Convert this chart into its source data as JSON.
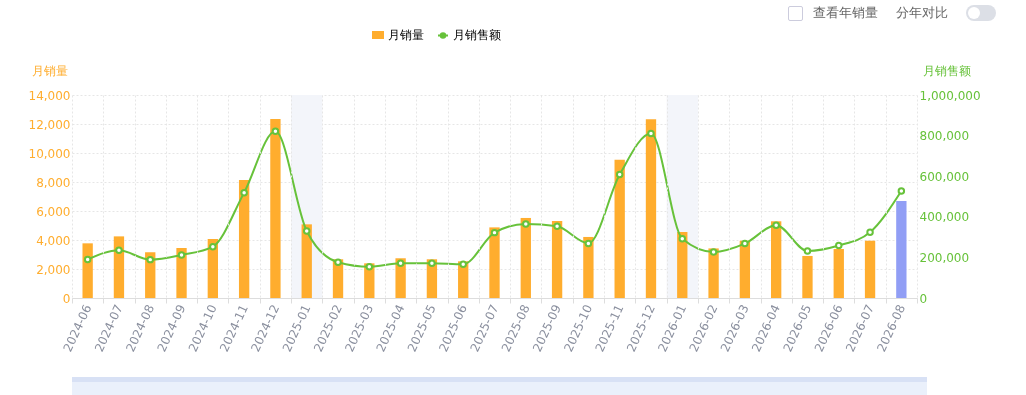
{
  "chart_data": {
    "type": "bar",
    "ylabel": "月销量",
    "y2label": "月销售额",
    "categories": [
      "2024-06",
      "2024-07",
      "2024-08",
      "2024-09",
      "2024-10",
      "2024-11",
      "2024-12",
      "2025-01",
      "2025-02",
      "2025-03",
      "2025-04",
      "2025-05",
      "2025-06",
      "2025-07",
      "2025-08",
      "2025-09",
      "2025-10",
      "2025-11",
      "2025-12",
      "2026-01",
      "2026-02",
      "2026-03",
      "2026-04",
      "2026-05",
      "2026-06",
      "2026-07",
      "2026-08"
    ],
    "series": [
      {
        "name": "月销量",
        "color": "#ffad2e",
        "colors": [
          "#ffad2e",
          "#ffad2e",
          "#ffad2e",
          "#ffad2e",
          "#ffad2e",
          "#ffad2e",
          "#ffad2e",
          "#ffad2e",
          "#ffad2e",
          "#ffad2e",
          "#ffad2e",
          "#ffad2e",
          "#ffad2e",
          "#ffad2e",
          "#ffad2e",
          "#ffad2e",
          "#ffad2e",
          "#ffad2e",
          "#ffad2e",
          "#ffad2e",
          "#ffad2e",
          "#ffad2e",
          "#ffad2e",
          "#ffad2e",
          "#ffad2e",
          "#ffad2e",
          "#919ef5"
        ],
        "values": [
          3770,
          4250,
          3150,
          3450,
          4070,
          8140,
          12340,
          5080,
          2670,
          2390,
          2740,
          2670,
          2530,
          4870,
          5520,
          5310,
          4210,
          9540,
          12320,
          4550,
          3420,
          3950,
          5290,
          2900,
          3380,
          3950,
          6690
        ]
      },
      {
        "name": "月销售额",
        "type": "line",
        "axis": "y2",
        "color": "#67c23a",
        "marker": "circle",
        "values": [
          190000,
          235000,
          189000,
          212000,
          253000,
          519000,
          821000,
          330000,
          176000,
          154000,
          171000,
          171000,
          166000,
          322000,
          365000,
          353000,
          269000,
          608000,
          810000,
          292000,
          227000,
          268000,
          358000,
          232000,
          259000,
          324000,
          527000
        ]
      }
    ],
    "ylim": [
      0,
      14000
    ],
    "yticks": [
      0,
      {
        "value": 2000,
        "label": "2,000"
      },
      {
        "value": 4000,
        "label": "4,000"
      },
      {
        "value": 6000,
        "label": "6,000"
      },
      {
        "value": 8000,
        "label": "8,000"
      },
      {
        "value": 10000,
        "label": "10,000"
      },
      {
        "value": 12000,
        "label": "12,000"
      },
      {
        "value": 14000,
        "label": "14,000"
      }
    ],
    "y2lim": [
      0,
      1000000
    ],
    "y2ticks": [
      0,
      {
        "value": 200000,
        "label": "200,000"
      },
      {
        "value": 400000,
        "label": "400,000"
      },
      {
        "value": 600000,
        "label": "600,000"
      },
      {
        "value": 800000,
        "label": "800,000"
      },
      {
        "value": 1000000,
        "label": "1,000,000"
      }
    ],
    "bands": [
      {
        "axis": "x",
        "from": "2025-01",
        "to": "2025-01",
        "color": "#f3f5fa"
      },
      {
        "axis": "x",
        "from": "2026-01",
        "to": "2026-01",
        "color": "#f3f5fa"
      }
    ],
    "grid": true,
    "legend": "top",
    "annotations": [
      "查看年销量",
      "分年对比"
    ]
  }
}
